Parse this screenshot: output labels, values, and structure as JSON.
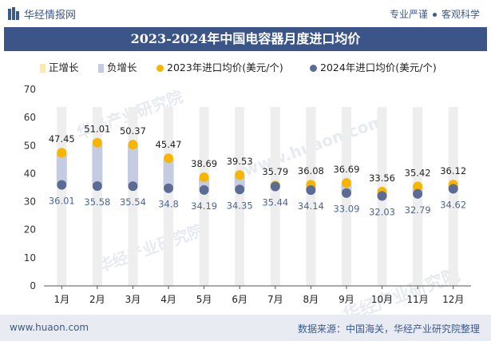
{
  "header": {
    "brand": "华经情报网",
    "slogan_left": "专业严谨",
    "slogan_right": "客观科学"
  },
  "footer": {
    "site": "www.huaon.com",
    "source": "数据来源：中国海关，华经产业研究院整理"
  },
  "watermarks": [
    "华经产业研究院",
    "www.huaon.com",
    "华经产业研究院",
    "华经产业研究院"
  ],
  "colors": {
    "title_bg": "#3c5589",
    "positive_bar": "#fbe9b3",
    "negative_bar": "#c5cbe0",
    "series_2023": "#f7b500",
    "series_2024": "#5b6b93",
    "grid_column": "#eeeeee",
    "footer_bg": "#e8ebf2"
  },
  "chart_data": {
    "type": "scatter",
    "title": "2023-2024年中国电容器月度进口均价",
    "legend": {
      "positive": "正增长",
      "negative": "负增长",
      "series_2023": "2023年进口均价(美元/个)",
      "series_2024": "2024年进口均价(美元/个)"
    },
    "categories": [
      "1月",
      "2月",
      "3月",
      "4月",
      "5月",
      "6月",
      "7月",
      "8月",
      "9月",
      "10月",
      "11月",
      "12月"
    ],
    "series": [
      {
        "name": "2023年进口均价(美元/个)",
        "values": [
          47.45,
          51.01,
          50.37,
          45.47,
          38.69,
          39.53,
          35.79,
          36.08,
          36.69,
          33.56,
          35.42,
          36.12
        ]
      },
      {
        "name": "2024年进口均价(美元/个)",
        "values": [
          36.01,
          35.58,
          35.54,
          34.8,
          34.19,
          34.35,
          35.44,
          34.14,
          33.09,
          32.03,
          32.79,
          34.62
        ]
      }
    ],
    "yticks": [
      "0",
      "10",
      "20",
      "30",
      "40",
      "50",
      "60",
      "70"
    ],
    "ylim": [
      0,
      70
    ],
    "xlabel": "",
    "ylabel": ""
  }
}
